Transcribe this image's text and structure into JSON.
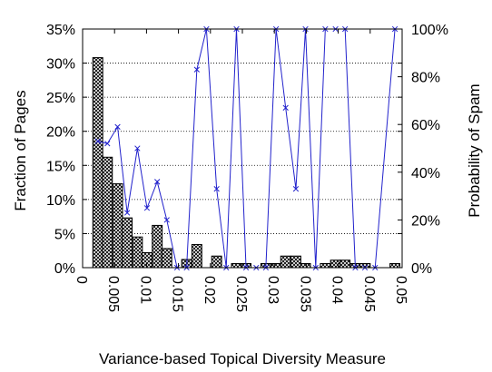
{
  "chart_data": {
    "type": "bar",
    "title": "",
    "xlabel": "Variance-based Topical Diversity Measure",
    "ylabel": "Fraction of Pages",
    "y2label": "Probability of Spam",
    "xlim": [
      0,
      0.05
    ],
    "ylim": [
      0,
      35
    ],
    "y2lim": [
      0,
      100
    ],
    "x_ticks": [
      "0",
      "0.005",
      "0.01",
      "0.015",
      "0.02",
      "0.025",
      "0.03",
      "0.035",
      "0.04",
      "0.045",
      "0.05"
    ],
    "y_ticks": [
      "0%",
      "5%",
      "10%",
      "15%",
      "20%",
      "25%",
      "30%",
      "35%"
    ],
    "y2_ticks": [
      "0%",
      "20%",
      "40%",
      "60%",
      "80%",
      "100%"
    ],
    "grid": "horizontal dotted",
    "bin_width": 0.00155,
    "series": [
      {
        "kind": "bars",
        "color": "#000000",
        "pattern": "crosshatch",
        "x": [
          0.0016,
          0.0031,
          0.0047,
          0.0062,
          0.0078,
          0.0093,
          0.0109,
          0.0124,
          0.0155,
          0.0171,
          0.0202,
          0.0233,
          0.0248,
          0.0279,
          0.0295,
          0.031,
          0.0326,
          0.0341,
          0.0372,
          0.0388,
          0.0403,
          0.0419,
          0.0434,
          0.0481
        ],
        "values": [
          30.8,
          16.2,
          12.3,
          7.3,
          4.5,
          2.2,
          6.2,
          2.8,
          1.2,
          3.4,
          1.7,
          0.6,
          0.6,
          0.6,
          0.6,
          1.7,
          1.7,
          0.6,
          0.6,
          1.1,
          1.1,
          0.6,
          0.6,
          0.6
        ]
      },
      {
        "kind": "line",
        "axis": "right",
        "color": "#2222cc",
        "marker": "x",
        "x": [
          0.0016,
          0.0031,
          0.0047,
          0.0062,
          0.0078,
          0.0093,
          0.0109,
          0.0124,
          0.014,
          0.0155,
          0.0171,
          0.0186,
          0.0202,
          0.0217,
          0.0233,
          0.0248,
          0.0264,
          0.0279,
          0.0295,
          0.031,
          0.0326,
          0.0341,
          0.0357,
          0.0372,
          0.0388,
          0.0403,
          0.0419,
          0.0434,
          0.045,
          0.0481
        ],
        "values": [
          53,
          52,
          59,
          23,
          50,
          25,
          36,
          20,
          0,
          0,
          83,
          100,
          33,
          0,
          100,
          0,
          0,
          0,
          100,
          67,
          33,
          100,
          0,
          100,
          100,
          100,
          0,
          0,
          0,
          100
        ]
      }
    ]
  }
}
